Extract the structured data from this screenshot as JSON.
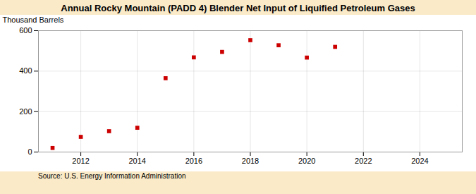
{
  "chart_data": {
    "type": "scatter",
    "title": "Annual Rocky Mountain (PADD 4) Blender Net Input of Liquified Petroleum Gases",
    "ylabel": "Thousand Barrels",
    "source": "Source: U.S. Energy Information Administration",
    "x": [
      2011,
      2012,
      2013,
      2014,
      2015,
      2016,
      2017,
      2018,
      2019,
      2020,
      2021
    ],
    "values": [
      20,
      75,
      103,
      120,
      365,
      468,
      495,
      553,
      528,
      467,
      520
    ],
    "xlim": [
      2010.5,
      2025.5
    ],
    "xticks": [
      2012,
      2014,
      2016,
      2018,
      2020,
      2022,
      2024
    ],
    "ylim": [
      0,
      600
    ],
    "yticks": [
      0,
      200,
      400,
      600
    ],
    "color": "#cc0000",
    "marker": "square",
    "grid": true
  }
}
